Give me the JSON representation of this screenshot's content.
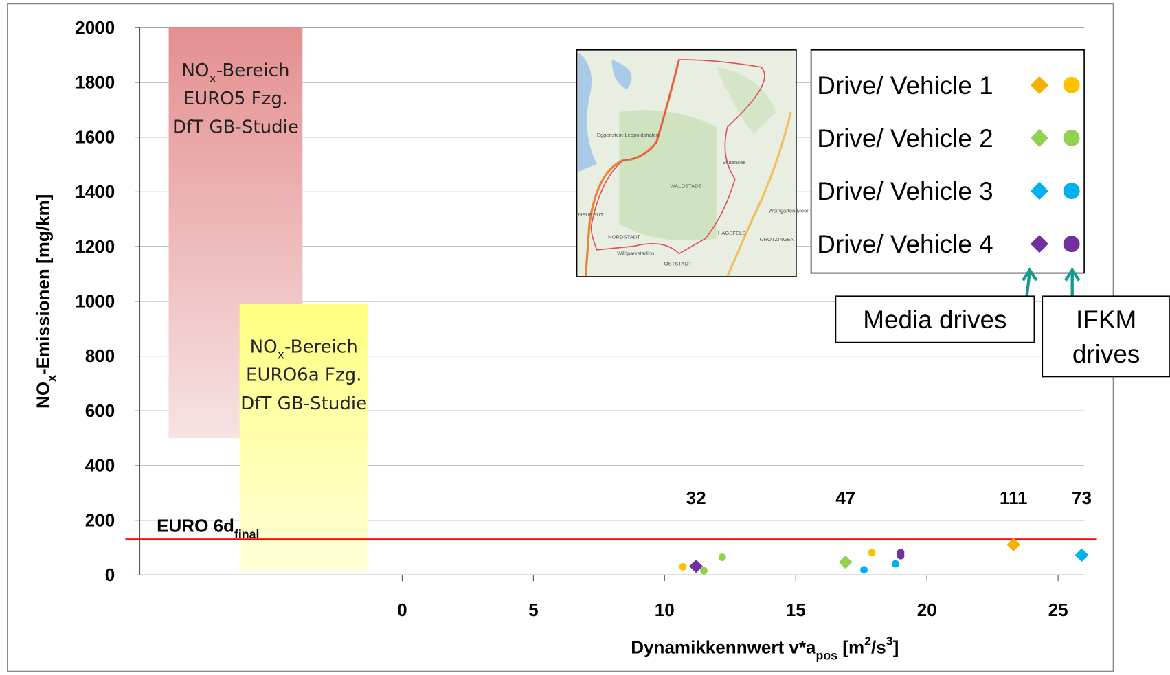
{
  "chart_data": {
    "type": "scatter",
    "y_label_parts": [
      {
        "text": "NO"
      },
      {
        "text": "x",
        "sub": true
      },
      {
        "text": "-Emissionen [mg/km]"
      }
    ],
    "x_label_parts": [
      {
        "text": "Dynamikkennwert v*a"
      },
      {
        "text": "pos",
        "sub": true
      },
      {
        "text": " [m"
      },
      {
        "text": "2",
        "sup": true
      },
      {
        "text": "/s"
      },
      {
        "text": "3",
        "sup": true
      },
      {
        "text": "]"
      }
    ],
    "xlim": [
      -10,
      26
    ],
    "xticks": [
      0,
      5,
      10,
      15,
      20,
      25
    ],
    "ylim": [
      0,
      2000
    ],
    "yticks": [
      0,
      200,
      400,
      600,
      800,
      1000,
      1200,
      1400,
      1600,
      1800,
      2000
    ],
    "grid": true,
    "regions": [
      {
        "fill": "url(#gRed)",
        "xrange": [
          -8.9,
          -3.8
        ],
        "yrange": [
          500,
          2000
        ],
        "label_lines": [
          [
            {
              "text": "NO"
            },
            {
              "text": "x",
              "sub": true
            },
            {
              "text": "-Bereich"
            }
          ],
          [
            {
              "text": "EURO5 Fzg."
            }
          ],
          [
            {
              "text": "DfT GB-Studie"
            }
          ]
        ]
      },
      {
        "fill": "url(#gYel)",
        "xrange": [
          -6.2,
          -1.3
        ],
        "yrange": [
          15,
          990
        ],
        "label_lines": [
          [
            {
              "text": "NO"
            },
            {
              "text": "x",
              "sub": true
            },
            {
              "text": "-Bereich"
            }
          ],
          [
            {
              "text": "EURO6a Fzg."
            }
          ],
          [
            {
              "text": "DfT GB-Studie"
            }
          ]
        ]
      }
    ],
    "limit_line": {
      "value": 130,
      "color": "#ff0000",
      "label_parts": [
        {
          "text": "EURO 6d"
        },
        {
          "text": "final",
          "sub": true
        }
      ]
    },
    "series": [
      {
        "name": "Drive/ Vehicle 1",
        "color": "#ffc000",
        "diamond_color": "#f5b000",
        "media": {
          "x": [
            23.3
          ],
          "y": [
            111
          ]
        },
        "ifkm": {
          "x": [
            10.7,
            17.9
          ],
          "y": [
            30,
            82
          ]
        }
      },
      {
        "name": "Drive/ Vehicle 2",
        "color": "#92d050",
        "diamond_color": "#92d050",
        "media": {
          "x": [
            16.9
          ],
          "y": [
            47
          ]
        },
        "ifkm": {
          "x": [
            12.2,
            11.5
          ],
          "y": [
            65,
            16
          ]
        }
      },
      {
        "name": "Drive/ Vehicle 3",
        "color": "#00b0f0",
        "diamond_color": "#00b0f0",
        "media": {
          "x": [
            25.9
          ],
          "y": [
            73
          ]
        },
        "ifkm": {
          "x": [
            17.6,
            18.8
          ],
          "y": [
            19,
            41
          ]
        }
      },
      {
        "name": "Drive/ Vehicle 4",
        "color": "#7030a0",
        "diamond_color": "#7030a0",
        "media": {
          "x": [
            11.2
          ],
          "y": [
            32
          ]
        },
        "ifkm": {
          "x": [
            19.0,
            19.0
          ],
          "y": [
            82,
            71
          ]
        }
      }
    ],
    "legend_position": "upper right",
    "annotations": [
      [
        "Media drives"
      ],
      [
        "IFKM",
        "drives"
      ]
    ],
    "map_labels": [
      "Eggenstein-Leopoldshafen",
      "Stutensee",
      "NORDSTADT",
      "WALDSTADT",
      "HAGSFELD",
      "Wildparkstadion",
      "OSTSTADT",
      "GROTZINGEN",
      "Weingarten Moor-Bruch Grötzingen",
      "NEUREUT"
    ]
  }
}
